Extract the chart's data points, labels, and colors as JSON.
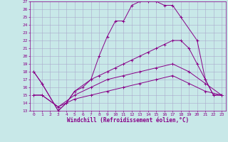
{
  "xlabel": "Windchill (Refroidissement éolien,°C)",
  "bg_color": "#c8e8e8",
  "line_color": "#880088",
  "grid_color": "#aaaacc",
  "xlim": [
    -0.5,
    23.5
  ],
  "ylim": [
    13,
    27
  ],
  "xticks": [
    0,
    1,
    2,
    3,
    4,
    5,
    6,
    7,
    8,
    9,
    10,
    11,
    12,
    13,
    14,
    15,
    16,
    17,
    18,
    19,
    20,
    21,
    22,
    23
  ],
  "yticks": [
    13,
    14,
    15,
    16,
    17,
    18,
    19,
    20,
    21,
    22,
    23,
    24,
    25,
    26,
    27
  ],
  "curve1_x": [
    0,
    1,
    3,
    4,
    5,
    6,
    7,
    8,
    9,
    10,
    11,
    12,
    13,
    14,
    15,
    16,
    17,
    18,
    20,
    21,
    22,
    23
  ],
  "curve1_y": [
    18,
    16.5,
    13,
    14,
    15.5,
    16,
    17,
    20,
    22.5,
    24.5,
    24.5,
    26.5,
    27,
    27,
    27,
    26.5,
    26.5,
    25,
    22,
    17,
    15,
    15
  ],
  "curve2_x": [
    0,
    1,
    3,
    4,
    5,
    7,
    8,
    9,
    10,
    11,
    12,
    13,
    14,
    15,
    16,
    17,
    18,
    19,
    20,
    21,
    22,
    23
  ],
  "curve2_y": [
    18,
    16.5,
    13,
    14,
    15.5,
    17,
    17.5,
    18,
    18.5,
    19,
    19.5,
    20,
    20.5,
    21,
    21.5,
    22,
    22,
    21,
    19,
    17,
    15,
    15
  ],
  "curve3_x": [
    0,
    1,
    3,
    5,
    7,
    9,
    11,
    13,
    15,
    17,
    19,
    21,
    23
  ],
  "curve3_y": [
    15,
    15,
    13.5,
    15,
    16,
    17,
    17.5,
    18,
    18.5,
    19,
    18,
    16.5,
    15
  ],
  "curve4_x": [
    0,
    1,
    3,
    5,
    7,
    9,
    11,
    13,
    15,
    17,
    19,
    21,
    23
  ],
  "curve4_y": [
    15,
    15,
    13.5,
    14.5,
    15,
    15.5,
    16,
    16.5,
    17,
    17.5,
    16.5,
    15.5,
    15
  ]
}
